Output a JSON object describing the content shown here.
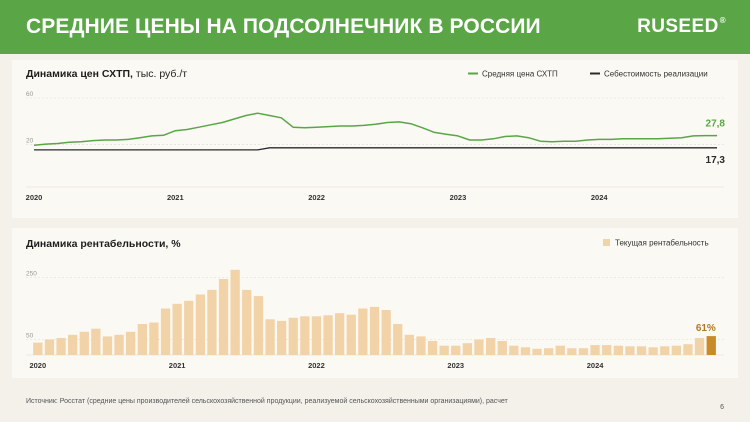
{
  "header": {
    "title": "СРЕДНИЕ ЦЕНЫ НА ПОДСОЛНЕЧНИК В РОССИИ",
    "logo": "RUSEED",
    "logo_mark": "®"
  },
  "colors": {
    "header_bg": "#5aa647",
    "price_line": "#5aa647",
    "cost_line": "#2b2b2b",
    "bar": "#f2d3a8",
    "bar_current": "#c98a2a",
    "current_label": "#b07a22"
  },
  "chart_data": [
    {
      "type": "line",
      "title": "Динамика цен СХТП,",
      "title_unit": "тыс. руб./т",
      "ylim": [
        0,
        60
      ],
      "yticks": [
        20,
        60
      ],
      "x_labels": [
        "2020",
        "2021",
        "2022",
        "2023",
        "2024"
      ],
      "x_range": [
        "2020-01",
        "2024-11"
      ],
      "legend_position": "top-right",
      "grid": true,
      "series": [
        {
          "name": "Средняя цена СХТП",
          "color": "#5aa647",
          "end_label": "27,8",
          "x": [
            "2020-01",
            "2020-02",
            "2020-03",
            "2020-04",
            "2020-05",
            "2020-06",
            "2020-07",
            "2020-08",
            "2020-09",
            "2020-10",
            "2020-11",
            "2020-12",
            "2021-01",
            "2021-02",
            "2021-03",
            "2021-04",
            "2021-05",
            "2021-06",
            "2021-07",
            "2021-08",
            "2021-09",
            "2021-10",
            "2021-11",
            "2021-12",
            "2022-01",
            "2022-02",
            "2022-03",
            "2022-04",
            "2022-05",
            "2022-06",
            "2022-07",
            "2022-08",
            "2022-09",
            "2022-10",
            "2022-11",
            "2022-12",
            "2023-01",
            "2023-02",
            "2023-03",
            "2023-04",
            "2023-05",
            "2023-06",
            "2023-07",
            "2023-08",
            "2023-09",
            "2023-10",
            "2023-11",
            "2023-12",
            "2024-01",
            "2024-02",
            "2024-03",
            "2024-04",
            "2024-05",
            "2024-06",
            "2024-07",
            "2024-08",
            "2024-09",
            "2024-10",
            "2024-11"
          ],
          "values": [
            19.5,
            20.5,
            21,
            22,
            22.5,
            23.5,
            24,
            24,
            24.5,
            26,
            27.5,
            28,
            32,
            33,
            35,
            37,
            39,
            42,
            45,
            47,
            45,
            43,
            35,
            34.5,
            35,
            35.5,
            36,
            36,
            36.5,
            37.5,
            39,
            39.5,
            38,
            34.5,
            30.5,
            29,
            27.5,
            24,
            24,
            25,
            27,
            27.5,
            26,
            23,
            22.5,
            23,
            23,
            24,
            24.5,
            24.5,
            25,
            25,
            25,
            25,
            25.5,
            26,
            27.5,
            27.8,
            27.8
          ]
        },
        {
          "name": "Себестоимость реализации",
          "color": "#2b2b2b",
          "end_label": "17,3",
          "x": [
            "2020-01",
            "2021-08",
            "2021-09",
            "2022-08",
            "2022-09",
            "2024-11"
          ],
          "values": [
            15.5,
            15.5,
            17.3,
            17.3,
            17.3,
            17.3
          ]
        }
      ]
    },
    {
      "type": "bar",
      "title": "Динамика рентабельности, %",
      "ylim": [
        0,
        300
      ],
      "yticks": [
        50,
        250
      ],
      "x_labels": [
        "2020",
        "2021",
        "2022",
        "2023",
        "2024"
      ],
      "legend_position": "top-right",
      "grid": true,
      "series": [
        {
          "name": "Текущая рентабельность",
          "color": "#f2d3a8",
          "end_label": "61%",
          "x": [
            "2020-01",
            "2020-02",
            "2020-03",
            "2020-04",
            "2020-05",
            "2020-06",
            "2020-07",
            "2020-08",
            "2020-09",
            "2020-10",
            "2020-11",
            "2020-12",
            "2021-01",
            "2021-02",
            "2021-03",
            "2021-04",
            "2021-05",
            "2021-06",
            "2021-07",
            "2021-08",
            "2021-09",
            "2021-10",
            "2021-11",
            "2021-12",
            "2022-01",
            "2022-02",
            "2022-03",
            "2022-04",
            "2022-05",
            "2022-06",
            "2022-07",
            "2022-08",
            "2022-09",
            "2022-10",
            "2022-11",
            "2022-12",
            "2023-01",
            "2023-02",
            "2023-03",
            "2023-04",
            "2023-05",
            "2023-06",
            "2023-07",
            "2023-08",
            "2023-09",
            "2023-10",
            "2023-11",
            "2023-12",
            "2024-01",
            "2024-02",
            "2024-03",
            "2024-04",
            "2024-05",
            "2024-06",
            "2024-07",
            "2024-08",
            "2024-09",
            "2024-10",
            "2024-11"
          ],
          "values": [
            40,
            50,
            55,
            65,
            75,
            85,
            60,
            65,
            75,
            100,
            105,
            150,
            165,
            175,
            195,
            210,
            245,
            275,
            210,
            190,
            115,
            110,
            120,
            125,
            125,
            128,
            135,
            130,
            150,
            155,
            145,
            100,
            65,
            60,
            45,
            30,
            30,
            38,
            50,
            55,
            45,
            30,
            25,
            20,
            22,
            30,
            22,
            22,
            32,
            32,
            30,
            28,
            28,
            25,
            28,
            30,
            35,
            55,
            61
          ]
        }
      ]
    }
  ],
  "footer": {
    "source": "Источник: Росстат (средние цены производителей сельскохозяйственной продукции, реализуемой сельскохозяйственными организациями), расчет",
    "page_number": "6"
  }
}
